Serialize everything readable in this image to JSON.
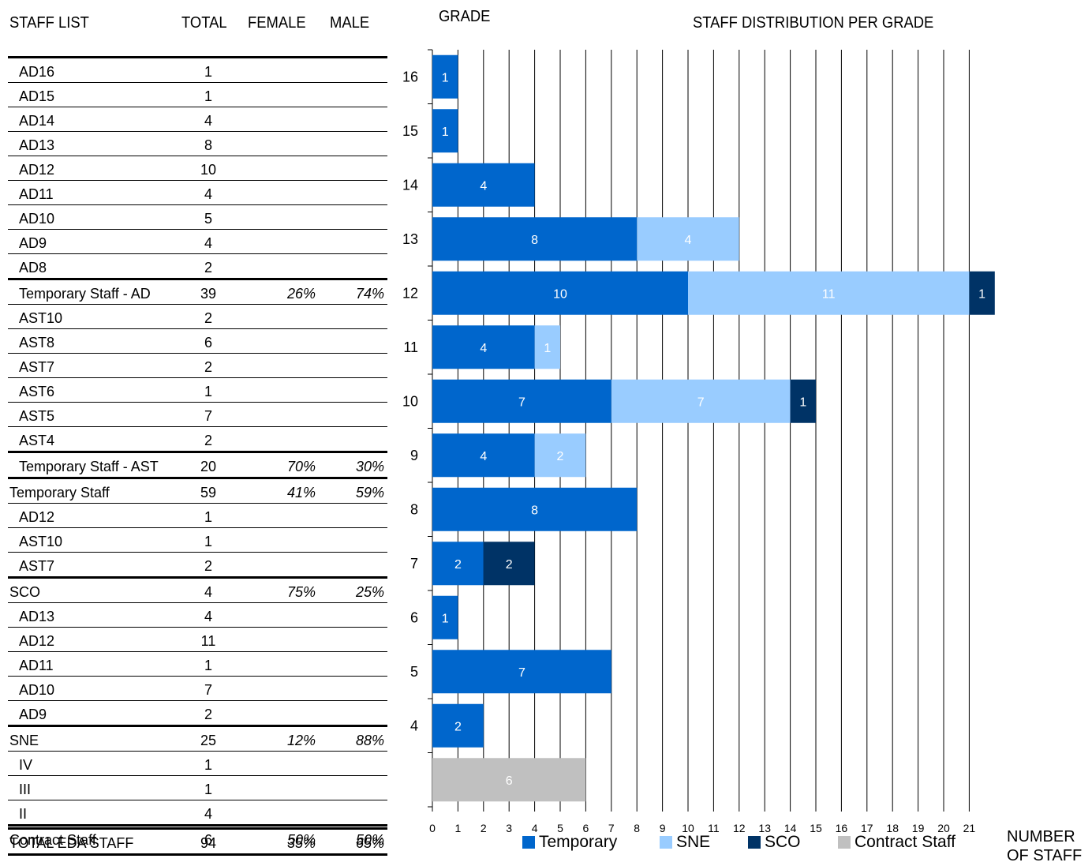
{
  "headers": {
    "staff_list": "STAFF LIST",
    "total": "TOTAL",
    "female": "FEMALE",
    "male": "MALE",
    "grade": "GRADE",
    "chart_title": "STAFF DISTRIBUTION PER GRADE",
    "x_axis_title_line1": "NUMBER",
    "x_axis_title_line2": "OF STAFF"
  },
  "table_rows": [
    {
      "label": "AD16",
      "total": "1",
      "female": "",
      "male": "",
      "indent": true,
      "border": "thick"
    },
    {
      "label": "AD15",
      "total": "1",
      "female": "",
      "male": "",
      "indent": true,
      "border": "thin"
    },
    {
      "label": "AD14",
      "total": "4",
      "female": "",
      "male": "",
      "indent": true,
      "border": "thin"
    },
    {
      "label": "AD13",
      "total": "8",
      "female": "",
      "male": "",
      "indent": true,
      "border": "thin"
    },
    {
      "label": "AD12",
      "total": "10",
      "female": "",
      "male": "",
      "indent": true,
      "border": "thin"
    },
    {
      "label": "AD11",
      "total": "4",
      "female": "",
      "male": "",
      "indent": true,
      "border": "thin"
    },
    {
      "label": "AD10",
      "total": "5",
      "female": "",
      "male": "",
      "indent": true,
      "border": "thin"
    },
    {
      "label": "AD9",
      "total": "4",
      "female": "",
      "male": "",
      "indent": true,
      "border": "thin"
    },
    {
      "label": "AD8",
      "total": "2",
      "female": "",
      "male": "",
      "indent": true,
      "border": "thin"
    },
    {
      "label": "Temporary Staff - AD",
      "total": "39",
      "female": "26%",
      "male": "74%",
      "indent": true,
      "border": "thick"
    },
    {
      "label": "AST10",
      "total": "2",
      "female": "",
      "male": "",
      "indent": true,
      "border": "thin"
    },
    {
      "label": "AST8",
      "total": "6",
      "female": "",
      "male": "",
      "indent": true,
      "border": "thin"
    },
    {
      "label": "AST7",
      "total": "2",
      "female": "",
      "male": "",
      "indent": true,
      "border": "thin"
    },
    {
      "label": "AST6",
      "total": "1",
      "female": "",
      "male": "",
      "indent": true,
      "border": "thin"
    },
    {
      "label": "AST5",
      "total": "7",
      "female": "",
      "male": "",
      "indent": true,
      "border": "thin"
    },
    {
      "label": "AST4",
      "total": "2",
      "female": "",
      "male": "",
      "indent": true,
      "border": "thin"
    },
    {
      "label": "Temporary Staff - AST",
      "total": "20",
      "female": "70%",
      "male": "30%",
      "indent": true,
      "border": "thick"
    },
    {
      "label": "Temporary Staff",
      "total": "59",
      "female": "41%",
      "male": "59%",
      "indent": false,
      "border": "thick"
    },
    {
      "label": "AD12",
      "total": "1",
      "female": "",
      "male": "",
      "indent": true,
      "border": "thin"
    },
    {
      "label": "AST10",
      "total": "1",
      "female": "",
      "male": "",
      "indent": true,
      "border": "thin"
    },
    {
      "label": "AST7",
      "total": "2",
      "female": "",
      "male": "",
      "indent": true,
      "border": "thin"
    },
    {
      "label": "SCO",
      "total": "4",
      "female": "75%",
      "male": "25%",
      "indent": false,
      "border": "thick"
    },
    {
      "label": "AD13",
      "total": "4",
      "female": "",
      "male": "",
      "indent": true,
      "border": "thin"
    },
    {
      "label": "AD12",
      "total": "11",
      "female": "",
      "male": "",
      "indent": true,
      "border": "thin"
    },
    {
      "label": "AD11",
      "total": "1",
      "female": "",
      "male": "",
      "indent": true,
      "border": "thin"
    },
    {
      "label": "AD10",
      "total": "7",
      "female": "",
      "male": "",
      "indent": true,
      "border": "thin"
    },
    {
      "label": "AD9",
      "total": "2",
      "female": "",
      "male": "",
      "indent": true,
      "border": "thin"
    },
    {
      "label": "SNE",
      "total": "25",
      "female": "12%",
      "male": "88%",
      "indent": false,
      "border": "thick"
    },
    {
      "label": "IV",
      "total": "1",
      "female": "",
      "male": "",
      "indent": true,
      "border": "thin"
    },
    {
      "label": "III",
      "total": "1",
      "female": "",
      "male": "",
      "indent": true,
      "border": "thin"
    },
    {
      "label": "II",
      "total": "4",
      "female": "",
      "male": "",
      "indent": true,
      "border": "thin"
    },
    {
      "label": "Contract Staff",
      "total": "6",
      "female": "50%",
      "male": "50%",
      "indent": false,
      "border": "thick"
    }
  ],
  "total_row": {
    "label": "TOTAL EDA STAFF",
    "total": "94",
    "female": "35%",
    "male": "65%"
  },
  "chart_data": {
    "type": "bar",
    "orientation": "horizontal",
    "stacked": true,
    "title": "STAFF DISTRIBUTION PER GRADE",
    "ylabel": "GRADE",
    "xlabel": "NUMBER OF STAFF",
    "categories": [
      "16",
      "15",
      "14",
      "13",
      "12",
      "11",
      "10",
      "9",
      "8",
      "7",
      "6",
      "5",
      "4",
      ""
    ],
    "xlim": [
      0,
      21
    ],
    "x_ticks": [
      0,
      1,
      2,
      3,
      4,
      5,
      6,
      7,
      8,
      9,
      10,
      11,
      12,
      13,
      14,
      15,
      16,
      17,
      18,
      19,
      20,
      21
    ],
    "grid": "vertical",
    "legend_position": "bottom",
    "series": [
      {
        "name": "Temporary",
        "color": "#0066cc",
        "label_color": "#ffffff",
        "values": [
          1,
          1,
          4,
          8,
          10,
          4,
          7,
          4,
          8,
          2,
          1,
          7,
          2,
          0
        ]
      },
      {
        "name": "SNE",
        "color": "#99ccff",
        "label_color": "#ffffff",
        "values": [
          0,
          0,
          0,
          4,
          11,
          1,
          7,
          2,
          0,
          0,
          0,
          0,
          0,
          0
        ]
      },
      {
        "name": "SCO",
        "color": "#003366",
        "label_color": "#ffffff",
        "values": [
          0,
          0,
          0,
          0,
          1,
          0,
          1,
          0,
          0,
          2,
          0,
          0,
          0,
          0
        ]
      },
      {
        "name": "Contract Staff",
        "color": "#c0c0c0",
        "label_color": "#ffffff",
        "values": [
          0,
          0,
          0,
          0,
          0,
          0,
          0,
          0,
          0,
          0,
          0,
          0,
          0,
          6
        ]
      }
    ]
  }
}
